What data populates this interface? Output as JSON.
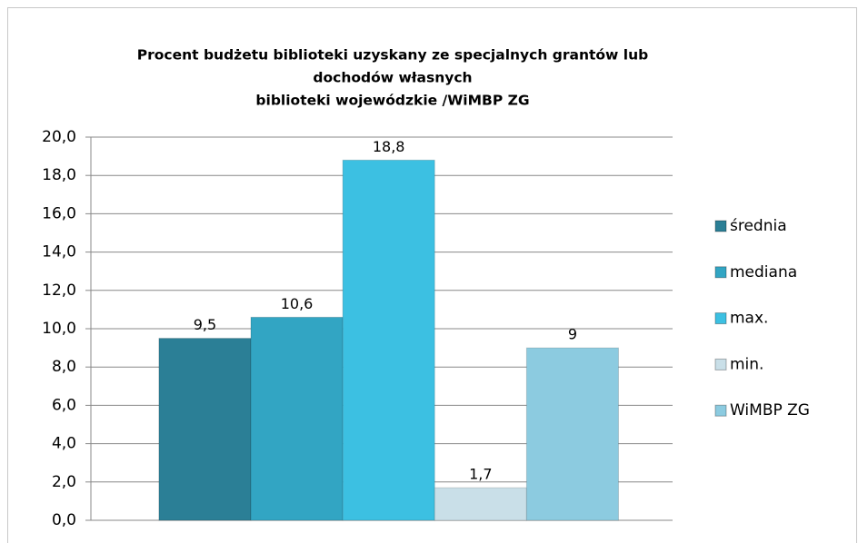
{
  "chart_data": {
    "type": "bar",
    "title": [
      "Procent budżetu biblioteki uzyskany ze specjalnych grantów lub",
      "dochodów własnych",
      "biblioteki wojewódzkie /WiMBP ZG"
    ],
    "categories": [
      null
    ],
    "series": [
      {
        "name": "średnia",
        "color": "#2b7f96",
        "values": [
          9.5
        ],
        "value_labels": [
          "9,5"
        ]
      },
      {
        "name": "mediana",
        "color": "#32a5c3",
        "values": [
          10.6
        ],
        "value_labels": [
          "10,6"
        ]
      },
      {
        "name": "max.",
        "color": "#3cc0e2",
        "values": [
          18.8
        ],
        "value_labels": [
          "18,8"
        ]
      },
      {
        "name": "min.",
        "color": "#c9dfe8",
        "values": [
          1.7
        ],
        "value_labels": [
          "1,7"
        ]
      },
      {
        "name": "WiMBP ZG",
        "color": "#8ccbe0",
        "values": [
          9
        ],
        "value_labels": [
          "9"
        ]
      }
    ],
    "ylim": [
      0,
      20
    ],
    "yticks": [
      {
        "value": 0,
        "label": "0,0"
      },
      {
        "value": 2,
        "label": "2,0"
      },
      {
        "value": 4,
        "label": "4,0"
      },
      {
        "value": 6,
        "label": "6,0"
      },
      {
        "value": 8,
        "label": "8,0"
      },
      {
        "value": 10,
        "label": "10,0"
      },
      {
        "value": 12,
        "label": "12,0"
      },
      {
        "value": 14,
        "label": "14,0"
      },
      {
        "value": 16,
        "label": "16,0"
      },
      {
        "value": 18,
        "label": "18,0"
      },
      {
        "value": 20,
        "label": "20,0"
      }
    ],
    "grid": true,
    "legend": "right"
  }
}
